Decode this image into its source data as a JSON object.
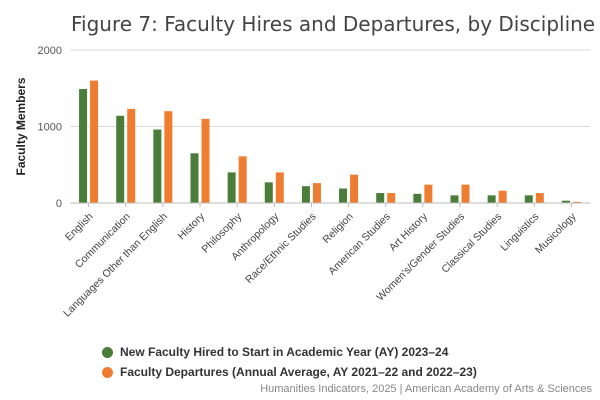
{
  "chart_data": {
    "type": "bar",
    "title": "Figure 7: Faculty Hires and Departures, by Discipline",
    "xlabel": "",
    "ylabel": "Faculty Members",
    "ylim": [
      0,
      2000
    ],
    "yticks": [
      0,
      1000,
      2000
    ],
    "yticklabels": [
      "0",
      "1000",
      "2000"
    ],
    "grid": true,
    "legend_position": "bottom",
    "categories": [
      "English",
      "Communication",
      "Languages Other than English",
      "History",
      "Philosophy",
      "Anthropology",
      "Race/Ethnic Studies",
      "Religion",
      "American Studies",
      "Art History",
      "Women's/Gender Studies",
      "Classical Studies",
      "Linguistics",
      "Musicology"
    ],
    "series": [
      {
        "name": "New Faculty Hired to Start in Academic Year (AY) 2023–24",
        "color": "#4a7c3a",
        "values": [
          1490,
          1140,
          960,
          650,
          400,
          270,
          220,
          190,
          130,
          120,
          100,
          100,
          100,
          30
        ]
      },
      {
        "name": "Faculty Departures (Annual Average, AY 2021–22 and 2022–23)",
        "color": "#ef7d31",
        "values": [
          1600,
          1230,
          1200,
          1100,
          610,
          400,
          260,
          370,
          130,
          240,
          240,
          160,
          130,
          15
        ]
      }
    ]
  },
  "source": "Humanities Indicators, 2025 | American Academy of Arts & Sciences"
}
